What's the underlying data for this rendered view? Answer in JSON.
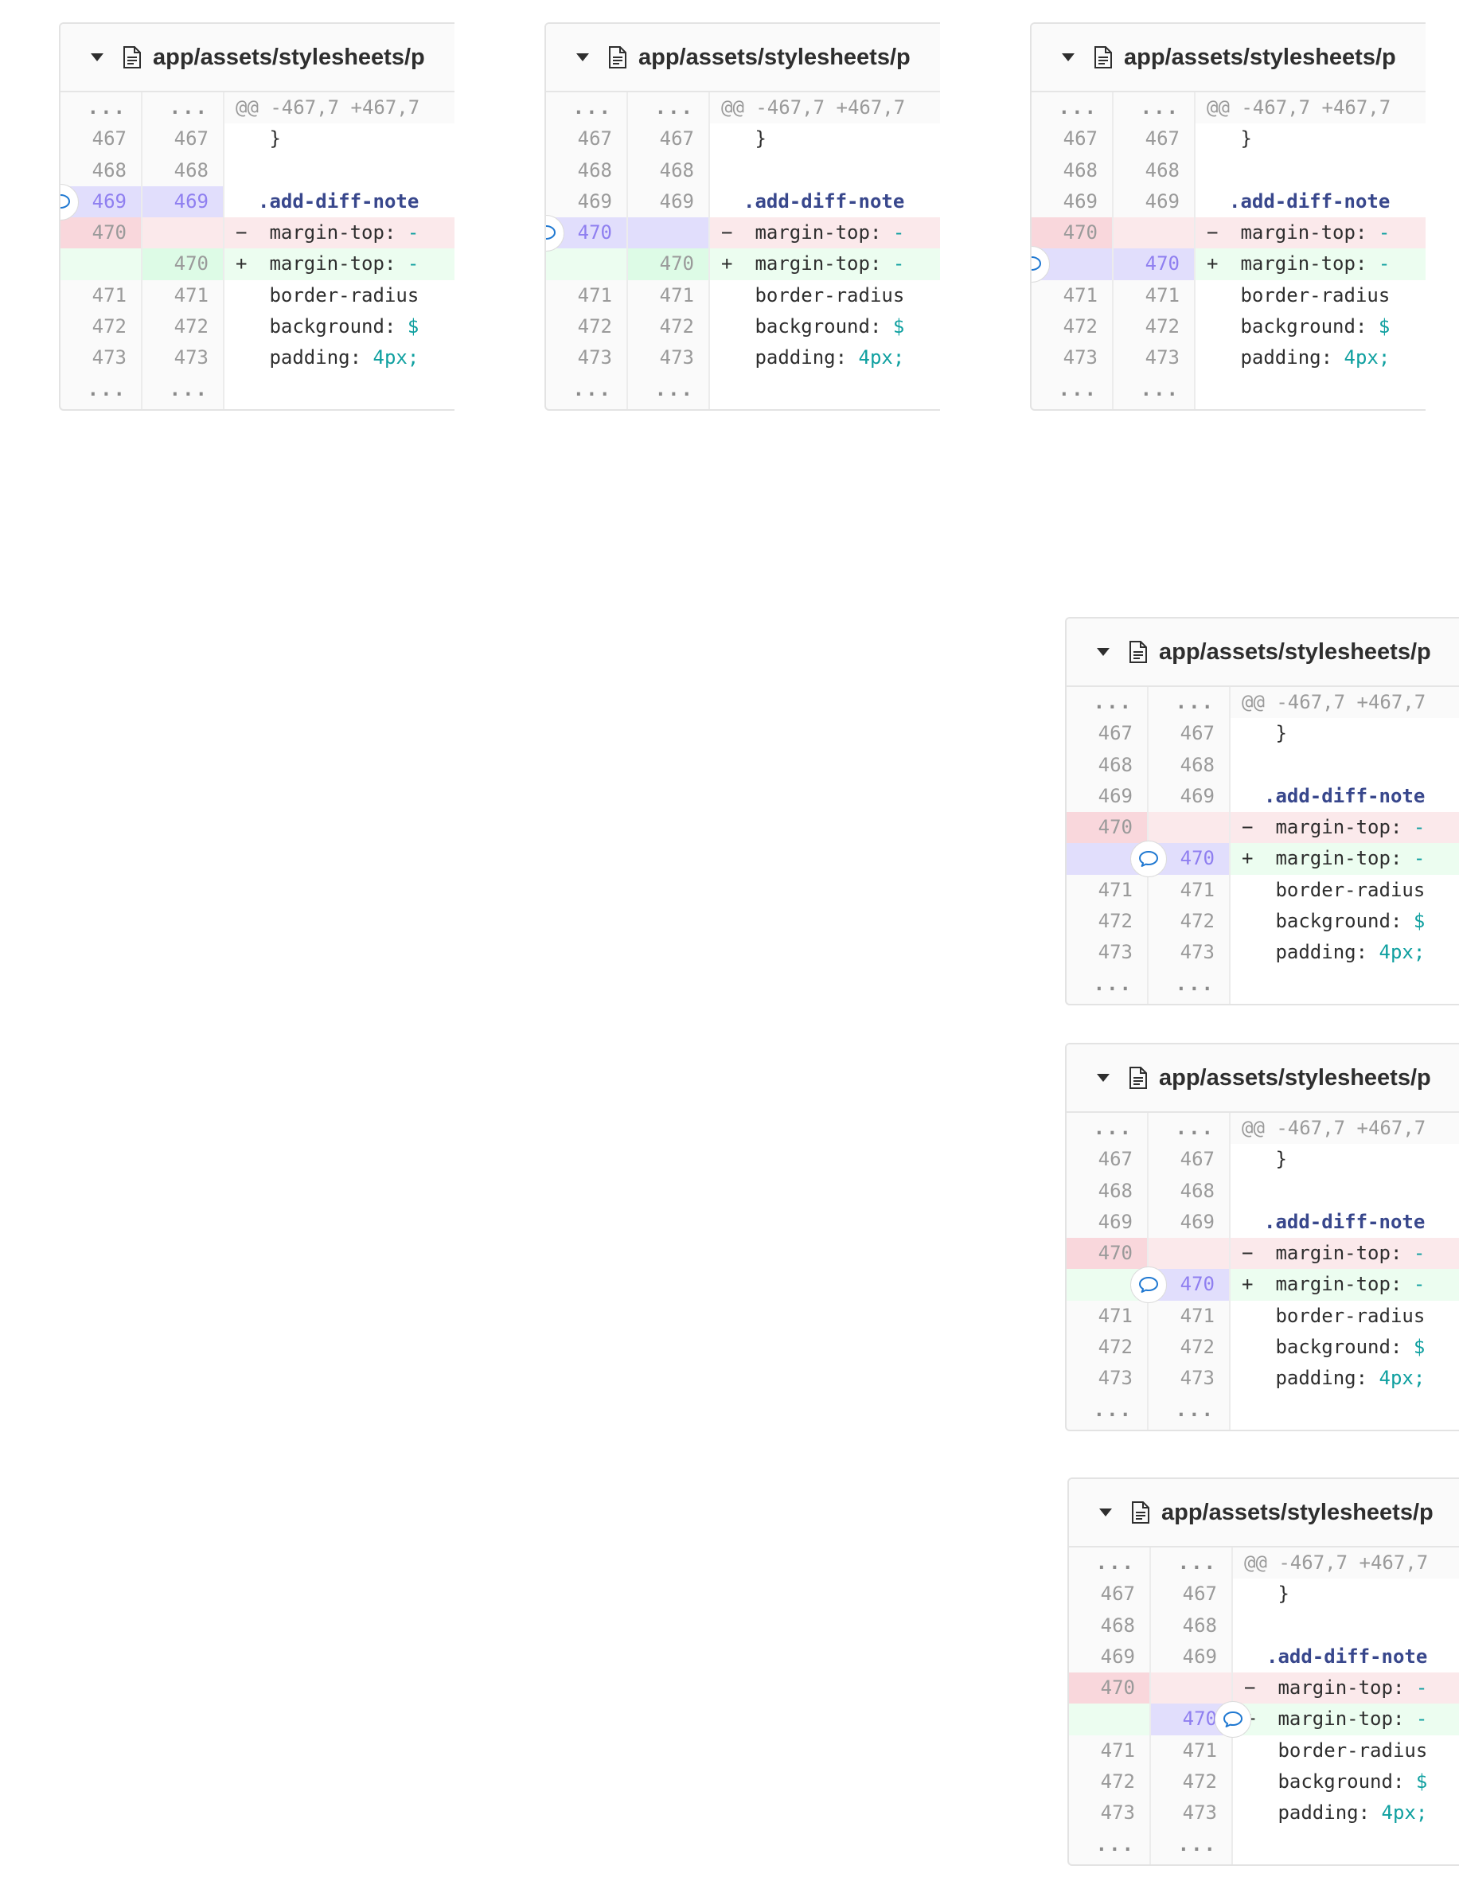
{
  "colors": {
    "deleted": "#fbe9eb",
    "added": "#ecfdf0",
    "highlight": "#e1defc",
    "selector": "#38478c",
    "value": "#0fa0a0"
  },
  "file": {
    "path": "app/assets/stylesheets/p",
    "icon": "file-icon",
    "toggle_icon": "chevron-down-icon"
  },
  "diff": {
    "hunk": {
      "old": "...",
      "new": "...",
      "text": "@@ -467,7 +467,7"
    },
    "lines": [
      {
        "old": "467",
        "new": "467",
        "text": "  }"
      },
      {
        "old": "468",
        "new": "468",
        "text": ""
      },
      {
        "old": "469",
        "new": "469",
        "selector": ".add-diff-note"
      },
      {
        "old": "470",
        "new": "",
        "sign": "−",
        "prop": "  margin-top: ",
        "val": "-"
      },
      {
        "old": "",
        "new": "470",
        "sign": "+",
        "prop": "  margin-top: ",
        "val": "-"
      },
      {
        "old": "471",
        "new": "471",
        "text": "  border-radius"
      },
      {
        "old": "472",
        "new": "472",
        "prop": "  background: ",
        "val": "$"
      },
      {
        "old": "473",
        "new": "473",
        "prop": "  padding: ",
        "val": "4px;"
      }
    ],
    "end": {
      "old": "...",
      "new": "..."
    }
  },
  "comment_icon": "comment-icon"
}
